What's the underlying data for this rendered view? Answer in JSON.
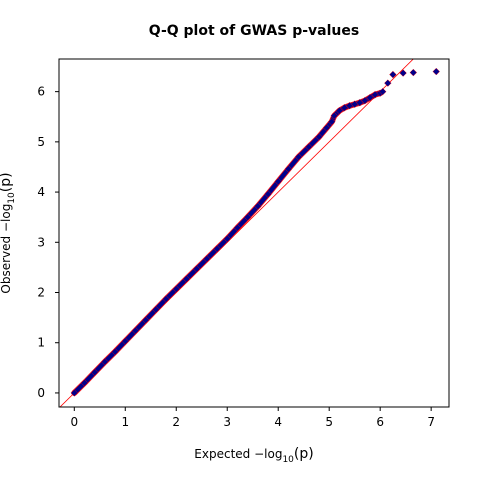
{
  "chart_data": {
    "type": "scatter",
    "title": "Q-Q plot of GWAS p-values",
    "xlabel": {
      "main": "Expected  −log",
      "sub": "10",
      "arg": "(p)"
    },
    "ylabel": {
      "main": "Observed  −log",
      "sub": "10",
      "arg": "(p)"
    },
    "xlim": [
      -0.3,
      7.35
    ],
    "ylim": [
      -0.28,
      6.65
    ],
    "xticks": [
      0,
      1,
      2,
      3,
      4,
      5,
      6,
      7
    ],
    "xtick_labels": [
      "0",
      "1",
      "2",
      "3",
      "4",
      "5",
      "6",
      "7"
    ],
    "yticks": [
      0,
      1,
      2,
      3,
      4,
      5,
      6
    ],
    "ytick_labels": [
      "0",
      "1",
      "2",
      "3",
      "4",
      "5",
      "6"
    ],
    "grid": false,
    "reference_line": {
      "slope": 1,
      "intercept": 0,
      "color": "#ff0000"
    },
    "point_color": "#00008b",
    "point_edge_color": "#ff0000",
    "points": [
      [
        0.0,
        0.0
      ],
      [
        0.2,
        0.2
      ],
      [
        0.4,
        0.41
      ],
      [
        0.6,
        0.62
      ],
      [
        0.8,
        0.82
      ],
      [
        1.0,
        1.03
      ],
      [
        1.2,
        1.24
      ],
      [
        1.4,
        1.45
      ],
      [
        1.6,
        1.66
      ],
      [
        1.8,
        1.87
      ],
      [
        2.0,
        2.07
      ],
      [
        2.2,
        2.27
      ],
      [
        2.4,
        2.47
      ],
      [
        2.6,
        2.67
      ],
      [
        2.8,
        2.87
      ],
      [
        3.0,
        3.07
      ],
      [
        3.2,
        3.29
      ],
      [
        3.4,
        3.5
      ],
      [
        3.6,
        3.72
      ],
      [
        3.8,
        3.96
      ],
      [
        4.0,
        4.21
      ],
      [
        4.2,
        4.46
      ],
      [
        4.4,
        4.7
      ],
      [
        4.6,
        4.9
      ],
      [
        4.8,
        5.1
      ],
      [
        4.95,
        5.28
      ],
      [
        5.05,
        5.4
      ],
      [
        5.1,
        5.52
      ],
      [
        5.2,
        5.62
      ],
      [
        5.3,
        5.68
      ],
      [
        5.4,
        5.72
      ],
      [
        5.5,
        5.75
      ],
      [
        5.6,
        5.78
      ],
      [
        5.7,
        5.82
      ],
      [
        5.8,
        5.88
      ],
      [
        5.9,
        5.94
      ],
      [
        6.0,
        5.97
      ],
      [
        6.05,
        6.0
      ],
      [
        6.15,
        6.17
      ],
      [
        6.25,
        6.34
      ],
      [
        6.45,
        6.37
      ],
      [
        6.65,
        6.38
      ],
      [
        7.1,
        6.4
      ]
    ]
  }
}
